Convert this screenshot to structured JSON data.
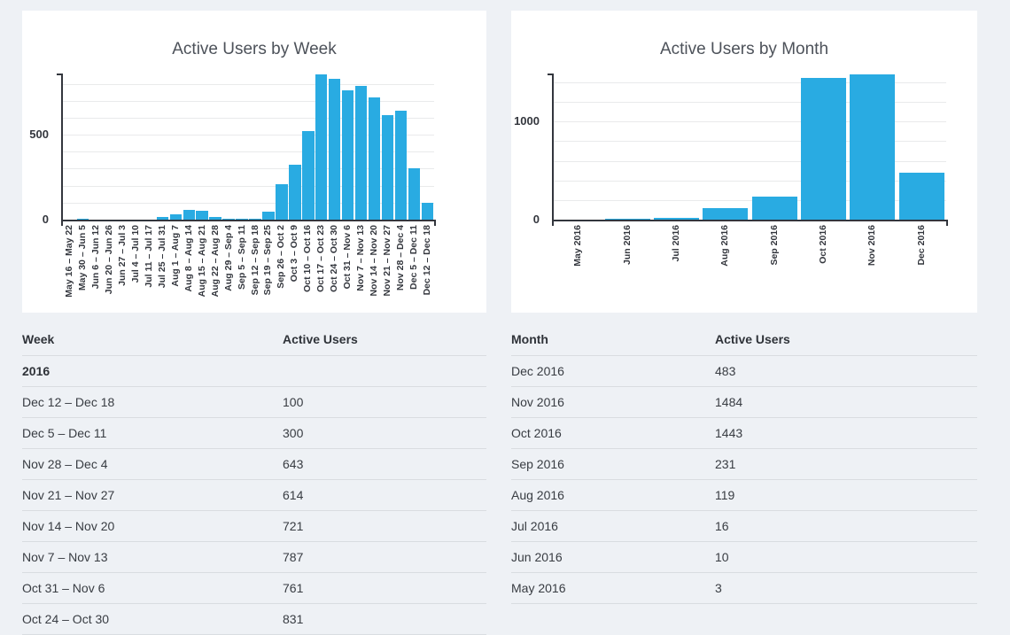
{
  "chart_data": [
    {
      "type": "bar",
      "title": "Active Users by Week",
      "categories": [
        "May 16 – May 22",
        "May 30 – Jun 5",
        "Jun 6 – Jun 12",
        "Jun 20 – Jun 26",
        "Jun 27 – Jul 3",
        "Jul 4 – Jul 10",
        "Jul 11 – Jul 17",
        "Jul 25 – Jul 31",
        "Aug 1 – Aug 7",
        "Aug 8 – Aug 14",
        "Aug 15 – Aug 21",
        "Aug 22 – Aug 28",
        "Aug 29 – Sep 4",
        "Sep 5 – Sep 11",
        "Sep 12 – Sep 18",
        "Sep 19 – Sep 25",
        "Sep 26 – Oct 2",
        "Oct 3 – Oct 9",
        "Oct 10 – Oct 16",
        "Oct 17 – Oct 23",
        "Oct 24 – Oct 30",
        "Oct 31 – Nov 6",
        "Nov 7 – Nov 13",
        "Nov 14 – Nov 20",
        "Nov 21 – Nov 27",
        "Nov 28 – Dec 4",
        "Dec 5 – Dec 11",
        "Dec 12 – Dec 18"
      ],
      "values": [
        2,
        8,
        2,
        1,
        1,
        2,
        2,
        15,
        30,
        56,
        52,
        17,
        7,
        5,
        4,
        45,
        208,
        325,
        520,
        855,
        831,
        761,
        787,
        721,
        614,
        643,
        300,
        100
      ],
      "xlabel": "",
      "ylabel": "",
      "ylim": [
        0,
        860
      ],
      "grid": true,
      "grid_interval": 100,
      "yticks": [
        {
          "value": 0,
          "label": "0"
        },
        {
          "value": 500,
          "label": "500"
        }
      ],
      "bar_color": "#29abe2"
    },
    {
      "type": "bar",
      "title": "Active Users by Month",
      "categories": [
        "May 2016",
        "Jun 2016",
        "Jul 2016",
        "Aug 2016",
        "Sep 2016",
        "Oct 2016",
        "Nov 2016",
        "Dec 2016"
      ],
      "values": [
        3,
        10,
        16,
        119,
        231,
        1443,
        1484,
        483
      ],
      "xlabel": "",
      "ylabel": "",
      "ylim": [
        0,
        1490
      ],
      "grid": true,
      "grid_interval": 200,
      "yticks": [
        {
          "value": 0,
          "label": "0"
        },
        {
          "value": 1000,
          "label": "1000"
        }
      ],
      "bar_color": "#29abe2"
    }
  ],
  "tables": [
    {
      "headers": [
        "Week",
        "Active Users"
      ],
      "section_label": "2016",
      "rows": [
        {
          "label": "Dec 12 – Dec 18",
          "value": "100"
        },
        {
          "label": "Dec 5 – Dec 11",
          "value": "300"
        },
        {
          "label": "Nov 28 – Dec 4",
          "value": "643"
        },
        {
          "label": "Nov 21 – Nov 27",
          "value": "614"
        },
        {
          "label": "Nov 14 – Nov 20",
          "value": "721"
        },
        {
          "label": "Nov 7 – Nov 13",
          "value": "787"
        },
        {
          "label": "Oct 31 – Nov 6",
          "value": "761"
        },
        {
          "label": "Oct 24 – Oct 30",
          "value": "831"
        }
      ]
    },
    {
      "headers": [
        "Month",
        "Active Users"
      ],
      "rows": [
        {
          "label": "Dec 2016",
          "value": "483"
        },
        {
          "label": "Nov 2016",
          "value": "1484"
        },
        {
          "label": "Oct 2016",
          "value": "1443"
        },
        {
          "label": "Sep 2016",
          "value": "231"
        },
        {
          "label": "Aug 2016",
          "value": "119"
        },
        {
          "label": "Jul 2016",
          "value": "16"
        },
        {
          "label": "Jun 2016",
          "value": "10"
        },
        {
          "label": "May 2016",
          "value": "3"
        }
      ]
    }
  ],
  "colors": {
    "page_bg": "#eef1f5",
    "card_bg": "#ffffff",
    "bar": "#29abe2",
    "axis": "#33363d",
    "gridline": "#e9eaeb",
    "table_border": "#d9dde1",
    "text": "#383c42",
    "title": "#4d525a"
  }
}
